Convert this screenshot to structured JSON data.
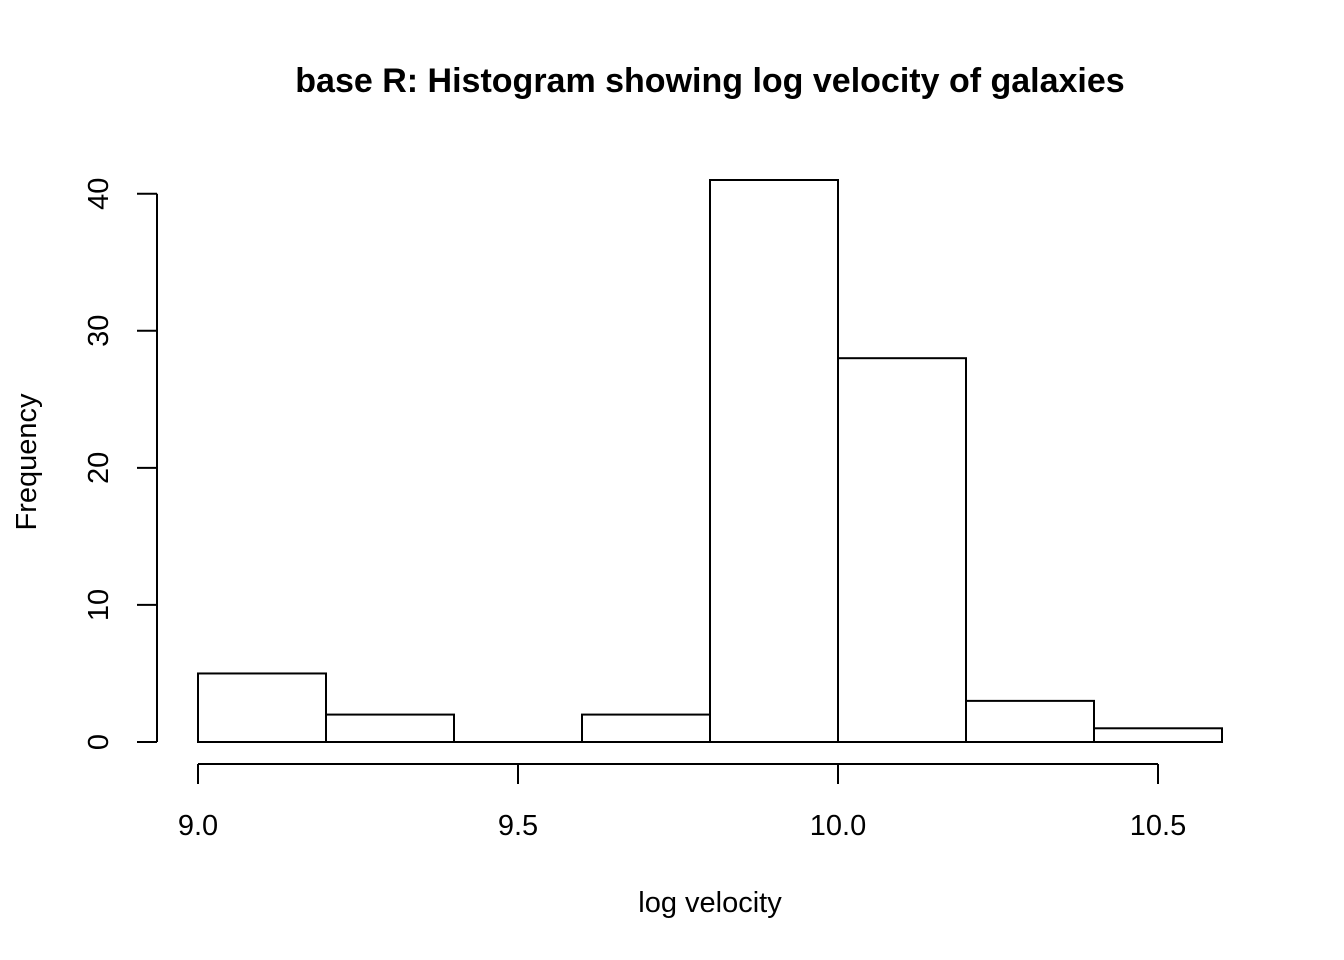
{
  "chart_data": {
    "type": "bar",
    "title": "base R: Histogram showing log velocity of galaxies",
    "xlabel": "log velocity",
    "ylabel": "Frequency",
    "bins": [
      {
        "start": 9.0,
        "end": 9.2,
        "count": 5
      },
      {
        "start": 9.2,
        "end": 9.4,
        "count": 2
      },
      {
        "start": 9.4,
        "end": 9.6,
        "count": 0
      },
      {
        "start": 9.6,
        "end": 9.8,
        "count": 2
      },
      {
        "start": 9.8,
        "end": 10.0,
        "count": 41
      },
      {
        "start": 10.0,
        "end": 10.2,
        "count": 28
      },
      {
        "start": 10.2,
        "end": 10.4,
        "count": 3
      },
      {
        "start": 10.4,
        "end": 10.6,
        "count": 1
      }
    ],
    "xlim": [
      9.0,
      10.6
    ],
    "ylim": [
      0,
      41
    ],
    "x_ticks": [
      {
        "value": 9.0,
        "label": "9.0"
      },
      {
        "value": 9.5,
        "label": "9.5"
      },
      {
        "value": 10.0,
        "label": "10.0"
      },
      {
        "value": 10.5,
        "label": "10.5"
      }
    ],
    "y_ticks": [
      {
        "value": 0,
        "label": "0"
      },
      {
        "value": 10,
        "label": "10"
      },
      {
        "value": 20,
        "label": "20"
      },
      {
        "value": 30,
        "label": "30"
      },
      {
        "value": 40,
        "label": "40"
      }
    ],
    "grid": false,
    "colors": {
      "bar_fill": "#ffffff",
      "bar_stroke": "#000000",
      "background": "#ffffff"
    }
  }
}
